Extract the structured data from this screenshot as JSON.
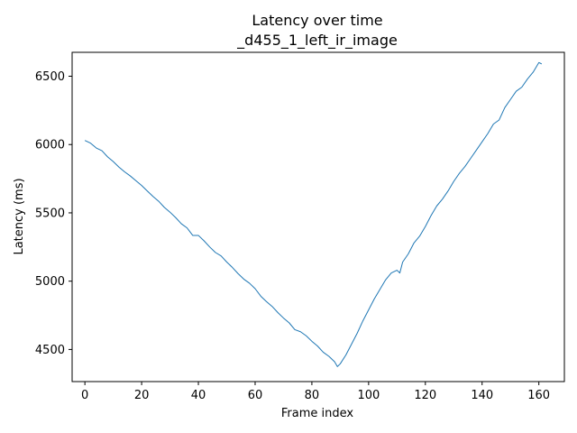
{
  "chart_data": {
    "type": "line",
    "title": "Latency over time",
    "subtitle": "_d455_1_left_ir_image",
    "xlabel": "Frame index",
    "ylabel": "Latency (ms)",
    "xlim": [
      -4.5,
      169
    ],
    "ylim": [
      4265,
      6675
    ],
    "xticks": [
      0,
      20,
      40,
      60,
      80,
      100,
      120,
      140,
      160
    ],
    "yticks": [
      4500,
      5000,
      5500,
      6000,
      6500
    ],
    "grid": false,
    "line_color": "#1f77b4",
    "series": [
      {
        "x": [
          0,
          2,
          4,
          6,
          8,
          10,
          12,
          14,
          16,
          18,
          20,
          22,
          24,
          26,
          28,
          30,
          32,
          34,
          36,
          38,
          40,
          42,
          44,
          46,
          48,
          50,
          52,
          54,
          56,
          58,
          60,
          62,
          64,
          66,
          68,
          70,
          72,
          74,
          76,
          78,
          80,
          82,
          84,
          86,
          88,
          89,
          90,
          92,
          94,
          96,
          98,
          100,
          102,
          104,
          106,
          108,
          110,
          111,
          112,
          114,
          116,
          118,
          120,
          122,
          124,
          126,
          128,
          130,
          132,
          134,
          136,
          138,
          140,
          142,
          144,
          146,
          148,
          150,
          152,
          154,
          156,
          158,
          160,
          161
        ],
        "y": [
          6030,
          6010,
          5975,
          5955,
          5910,
          5875,
          5835,
          5800,
          5770,
          5735,
          5700,
          5660,
          5620,
          5585,
          5540,
          5505,
          5465,
          5420,
          5390,
          5335,
          5335,
          5295,
          5250,
          5210,
          5185,
          5140,
          5100,
          5055,
          5015,
          4985,
          4945,
          4890,
          4850,
          4815,
          4770,
          4730,
          4695,
          4645,
          4630,
          4600,
          4560,
          4525,
          4480,
          4450,
          4410,
          4375,
          4395,
          4460,
          4540,
          4620,
          4710,
          4790,
          4870,
          4940,
          5010,
          5060,
          5080,
          5060,
          5140,
          5200,
          5280,
          5330,
          5400,
          5480,
          5550,
          5600,
          5660,
          5730,
          5790,
          5840,
          5900,
          5960,
          6020,
          6080,
          6150,
          6180,
          6270,
          6330,
          6390,
          6420,
          6480,
          6530,
          6600,
          6590
        ]
      }
    ]
  }
}
